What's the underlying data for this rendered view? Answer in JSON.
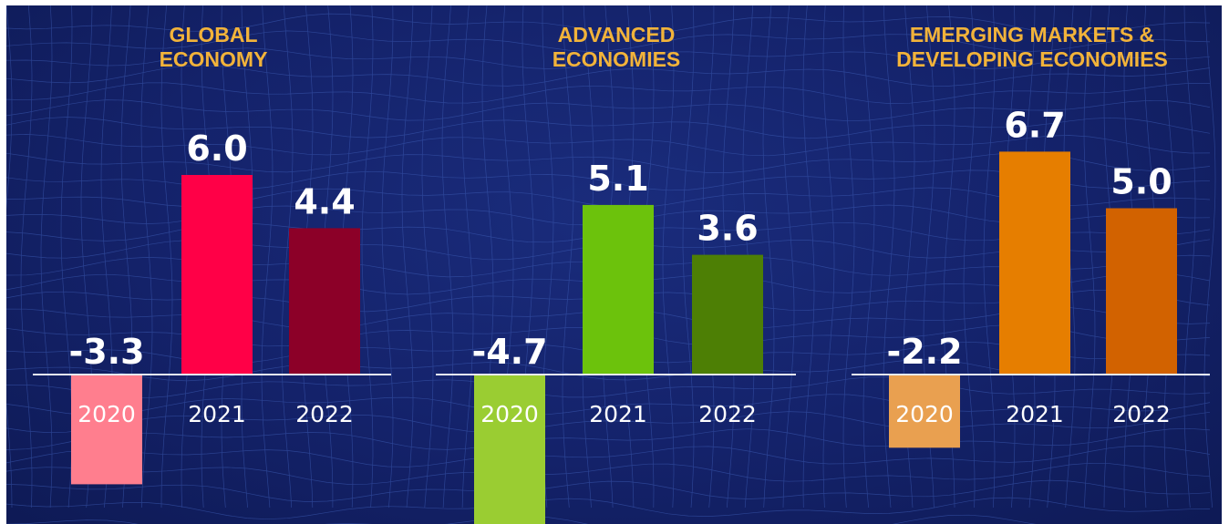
{
  "colors": {
    "background": "#14226a",
    "title": "#f2b33a",
    "label": "#ffffff",
    "baseline": "#e8ecf5"
  },
  "chart_data": [
    {
      "type": "bar",
      "title": "GLOBAL\nECONOMY",
      "categories": [
        "2020",
        "2021",
        "2022"
      ],
      "values": [
        -3.3,
        6.0,
        4.4
      ],
      "value_labels": [
        "-3.3",
        "6.0",
        "4.4"
      ],
      "colors": [
        "#ff7e8e",
        "#ff0047",
        "#8c0028"
      ]
    },
    {
      "type": "bar",
      "title": "ADVANCED\nECONOMIES",
      "categories": [
        "2020",
        "2021",
        "2022"
      ],
      "values": [
        -4.7,
        5.1,
        3.6
      ],
      "value_labels": [
        "-4.7",
        "5.1",
        "3.6"
      ],
      "colors": [
        "#9acd32",
        "#6cc20c",
        "#4d7f05"
      ]
    },
    {
      "type": "bar",
      "title": "EMERGING MARKETS &\nDEVELOPING ECONOMIES",
      "categories": [
        "2020",
        "2021",
        "2022"
      ],
      "values": [
        -2.2,
        6.7,
        5.0
      ],
      "value_labels": [
        "-2.2",
        "6.7",
        "5.0"
      ],
      "colors": [
        "#e9a050",
        "#e67e00",
        "#d26200"
      ]
    }
  ]
}
